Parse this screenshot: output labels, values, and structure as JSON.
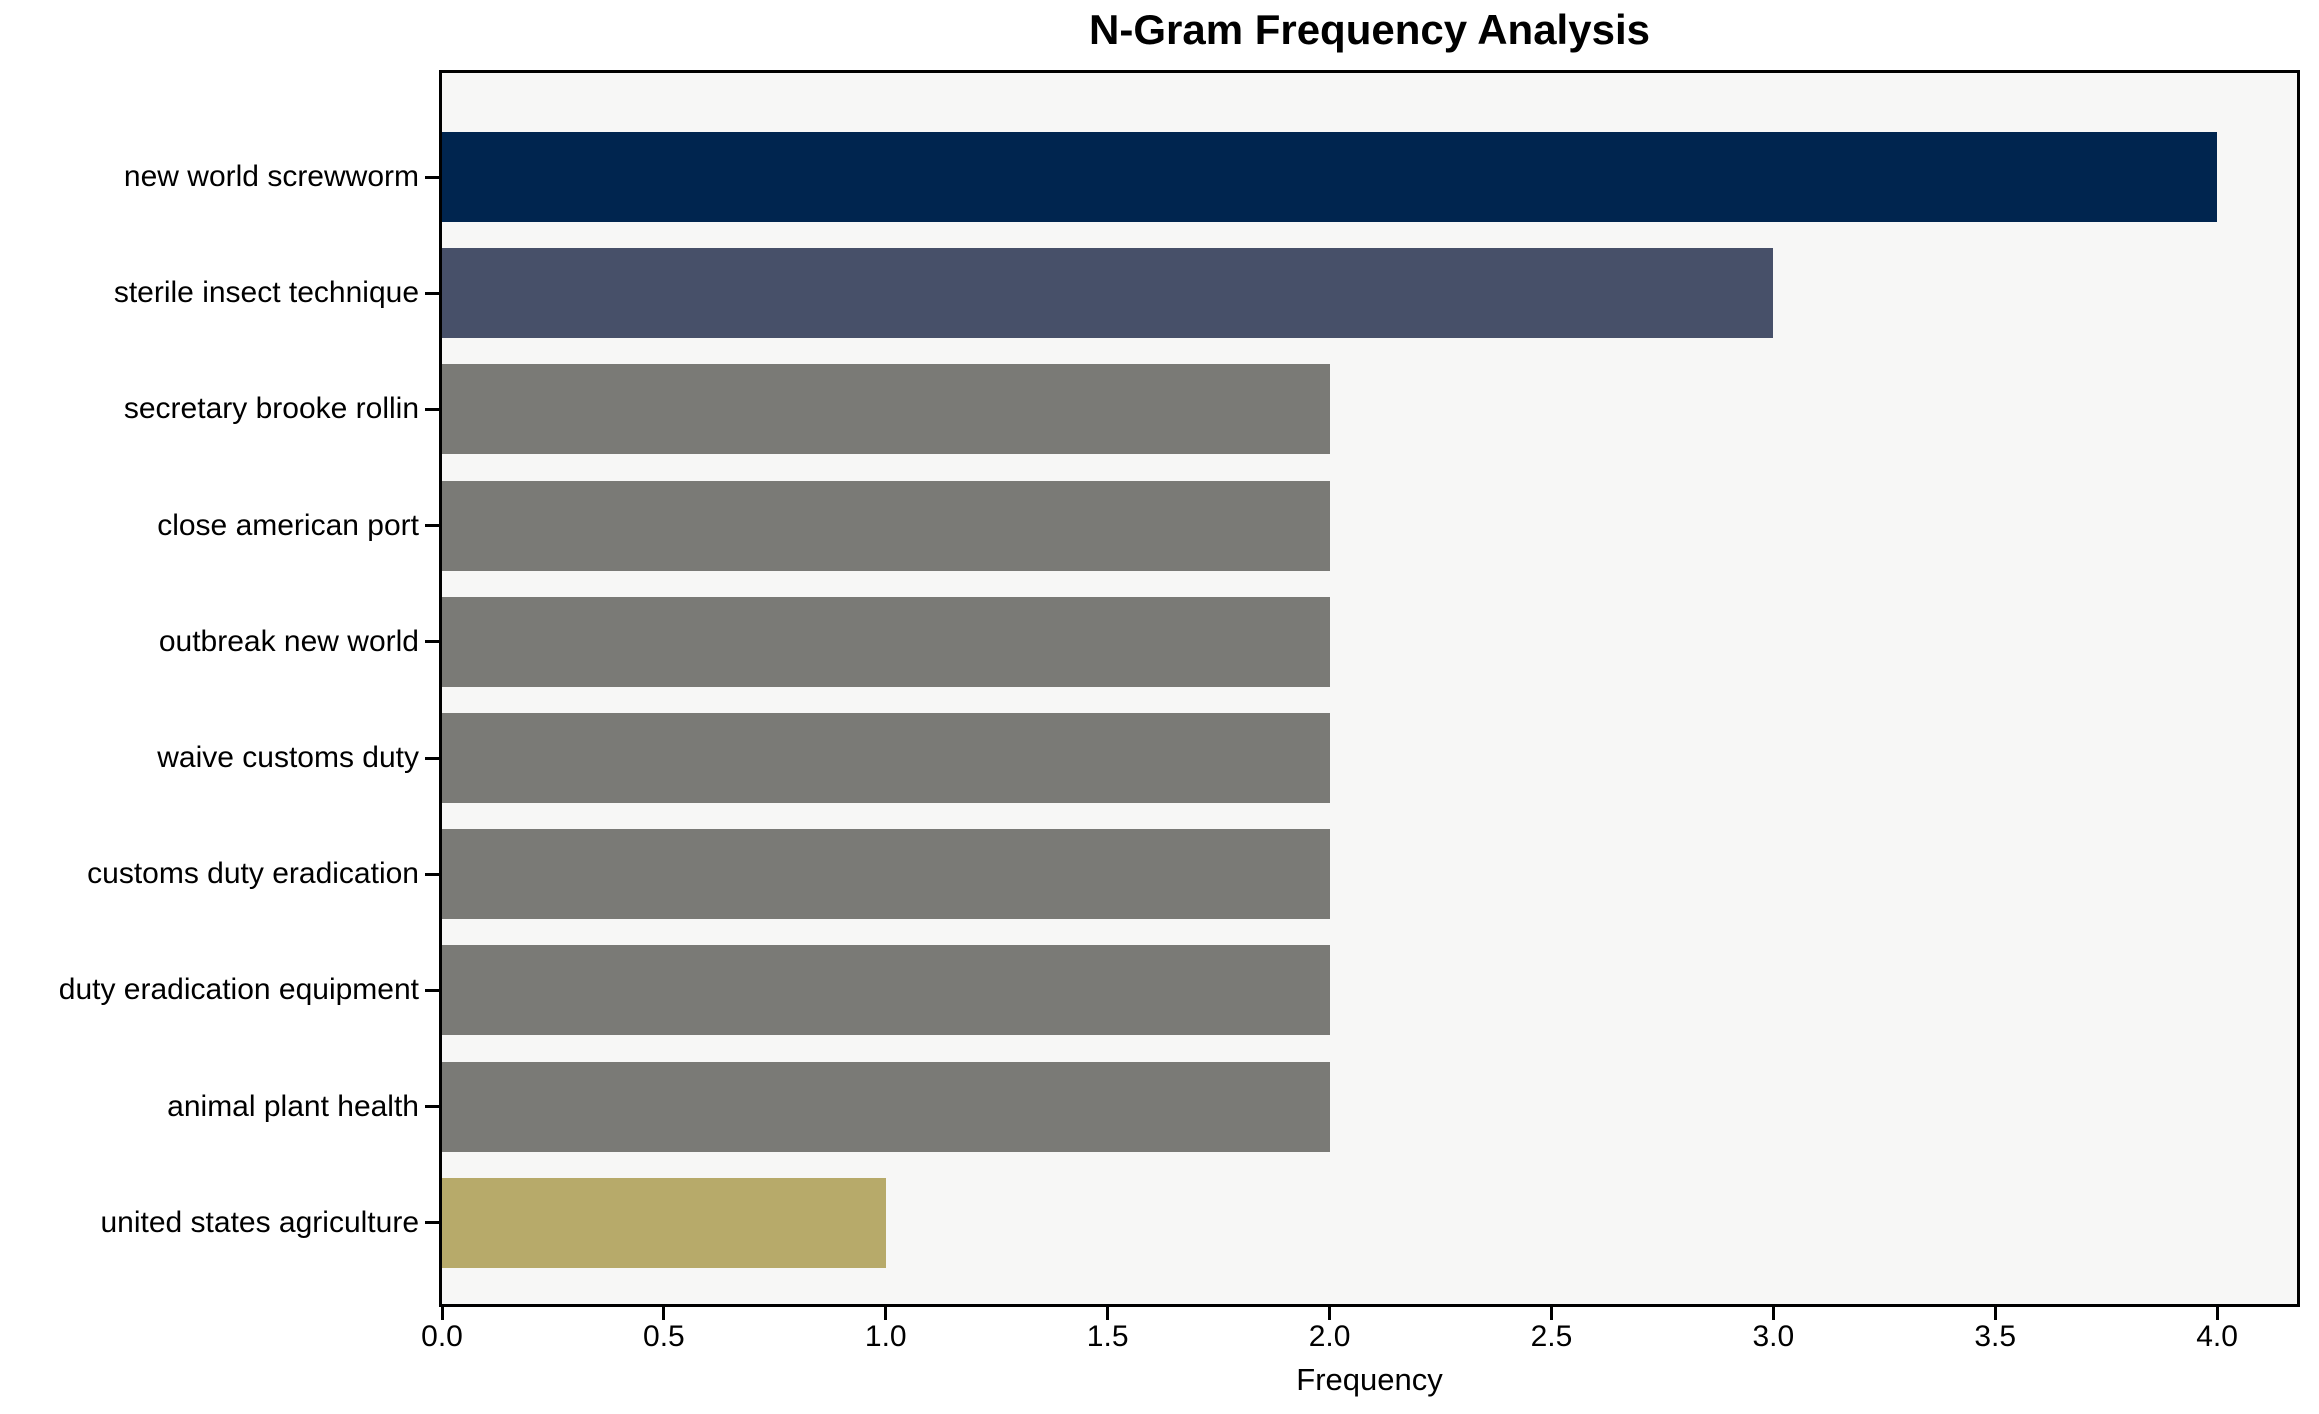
{
  "chart_data": {
    "type": "bar",
    "orientation": "horizontal",
    "title": "N-Gram Frequency Analysis",
    "xlabel": "Frequency",
    "ylabel": "",
    "categories": [
      "new world screwworm",
      "sterile insect technique",
      "secretary brooke rollin",
      "close american port",
      "outbreak new world",
      "waive customs duty",
      "customs duty eradication",
      "duty eradication equipment",
      "animal plant health",
      "united states agriculture"
    ],
    "values": [
      4,
      3,
      2,
      2,
      2,
      2,
      2,
      2,
      2,
      1
    ],
    "bar_colors": [
      "#00254f",
      "#475069",
      "#7a7a76",
      "#7a7a76",
      "#7a7a76",
      "#7a7a76",
      "#7a7a76",
      "#7a7a76",
      "#7a7a76",
      "#b7aa6a"
    ],
    "xlim": [
      0,
      4.18
    ],
    "xticks": [
      0,
      0.5,
      1,
      1.5,
      2,
      2.5,
      3,
      3.5,
      4
    ],
    "xtick_labels": [
      "0.0",
      "0.5",
      "1.0",
      "1.5",
      "2.0",
      "2.5",
      "3.0",
      "3.5",
      "4.0"
    ],
    "grid": false,
    "legend": false,
    "plot_background": "#f7f7f6",
    "figure_background": "#ffffff",
    "spine_color": "#000000",
    "text_color": "#000000"
  }
}
